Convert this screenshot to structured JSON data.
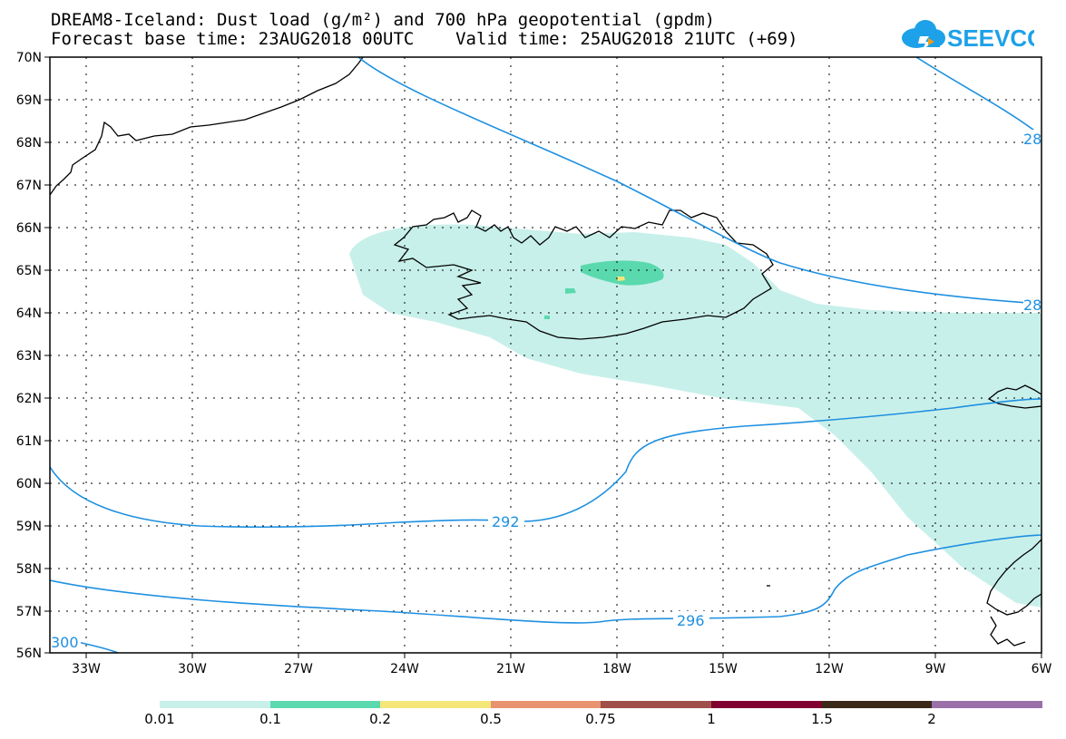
{
  "title": {
    "line1": "DREAM8-Iceland: Dust load (g/m²) and 700 hPa geopotential (gpdm)",
    "line2": "Forecast base time: 23AUG2018 00UTC    Valid time: 25AUG2018 21UTC (+69)"
  },
  "logo": {
    "text": "SEEVCCC",
    "icon": "cloud-icon",
    "color": "#1da1e8"
  },
  "map": {
    "lat_labels": [
      "70N",
      "69N",
      "68N",
      "67N",
      "66N",
      "65N",
      "64N",
      "63N",
      "62N",
      "61N",
      "60N",
      "59N",
      "58N",
      "57N",
      "56N"
    ],
    "lon_labels": [
      "33W",
      "30W",
      "27W",
      "24W",
      "21W",
      "18W",
      "15W",
      "12W",
      "9W",
      "6W"
    ],
    "contour_color": "#1e90e0",
    "contour_labels": [
      "292",
      "296",
      "300",
      "28",
      "28"
    ]
  },
  "colorbar": {
    "ticks": [
      "0.01",
      "0.1",
      "0.2",
      "0.5",
      "0.75",
      "1",
      "1.5",
      "2"
    ],
    "colors": [
      "#c8f0ea",
      "#5ad9ae",
      "#f5e67a",
      "#e89470",
      "#a0504a",
      "#800030",
      "#3a2818",
      "#9a70a8"
    ]
  },
  "dust_colors": {
    "low": "#c8f0ea",
    "mid": "#5ad9ae",
    "high": "#f5e67a"
  }
}
